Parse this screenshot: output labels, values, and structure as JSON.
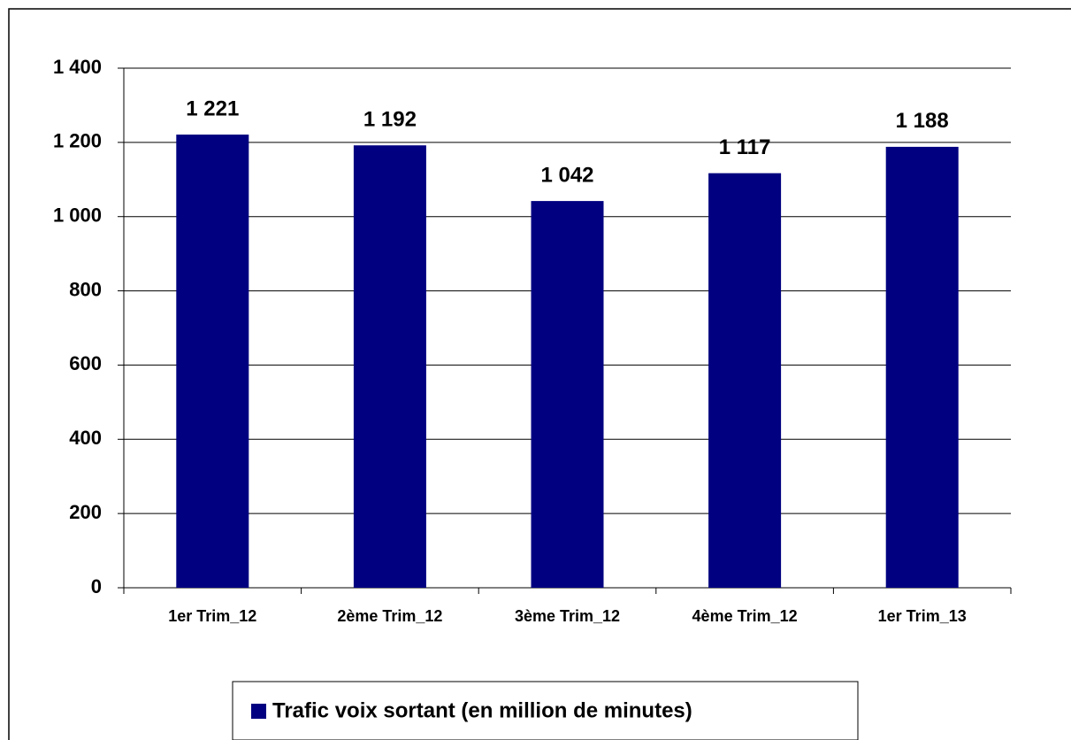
{
  "chart_data": {
    "type": "bar",
    "categories": [
      "1er Trim_12",
      "2ème Trim_12",
      "3ème Trim_12",
      "4ème Trim_12",
      "1er Trim_13"
    ],
    "series": [
      {
        "name": "Trafic voix sortant (en million de minutes)",
        "color": "#000080",
        "values": [
          1221,
          1192,
          1042,
          1117,
          1188
        ],
        "value_labels": [
          "1 221",
          "1 192",
          "1 042",
          "1 117",
          "1 188"
        ]
      }
    ],
    "ylim": [
      0,
      1400
    ],
    "yticks": [
      0,
      200,
      400,
      600,
      800,
      {
        "value": 1000,
        "label": "1 000"
      },
      {
        "value": 1200,
        "label": "1 200"
      },
      {
        "value": 1400,
        "label": "1 400"
      }
    ],
    "grid": true,
    "legend": "bottom"
  }
}
